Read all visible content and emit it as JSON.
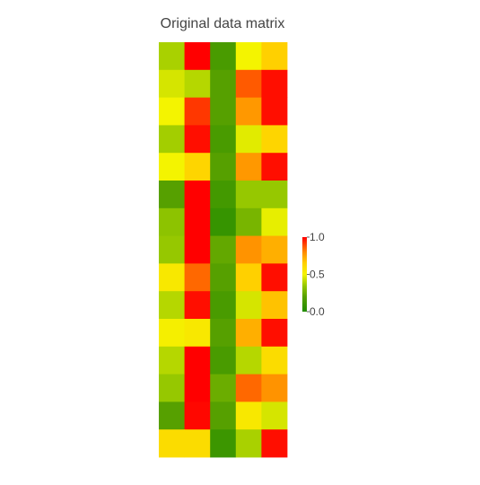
{
  "chart_data": {
    "type": "heatmap",
    "title": "Original data matrix",
    "xlabel": "",
    "ylabel": "",
    "n_rows": 15,
    "n_cols": 5,
    "zlim": [
      0,
      1
    ],
    "colorscale": [
      [
        0.0,
        "#218c00"
      ],
      [
        0.2,
        "#56a000"
      ],
      [
        0.35,
        "#96c800"
      ],
      [
        0.5,
        "#f4f400"
      ],
      [
        0.65,
        "#ffd000"
      ],
      [
        0.8,
        "#ff8a00"
      ],
      [
        1.0,
        "#ff0000"
      ]
    ],
    "colorbar": {
      "ticks": [
        0,
        0.5,
        1
      ],
      "tick_labels": [
        "0.0",
        "0.5",
        "1.0"
      ]
    },
    "values": [
      [
        0.38,
        1.0,
        0.15,
        0.5,
        0.65
      ],
      [
        0.45,
        0.4,
        0.2,
        0.87,
        0.98
      ],
      [
        0.5,
        0.92,
        0.2,
        0.77,
        0.98
      ],
      [
        0.37,
        0.98,
        0.15,
        0.47,
        0.63
      ],
      [
        0.5,
        0.63,
        0.2,
        0.77,
        0.98
      ],
      [
        0.2,
        1.0,
        0.13,
        0.35,
        0.35
      ],
      [
        0.33,
        1.0,
        0.08,
        0.28,
        0.48
      ],
      [
        0.35,
        1.0,
        0.23,
        0.78,
        0.72
      ],
      [
        0.55,
        0.85,
        0.2,
        0.65,
        0.98
      ],
      [
        0.4,
        0.98,
        0.15,
        0.45,
        0.68
      ],
      [
        0.52,
        0.55,
        0.2,
        0.72,
        0.98
      ],
      [
        0.4,
        1.0,
        0.15,
        0.4,
        0.6
      ],
      [
        0.35,
        1.0,
        0.25,
        0.85,
        0.78
      ],
      [
        0.2,
        0.99,
        0.2,
        0.55,
        0.45
      ],
      [
        0.6,
        0.6,
        0.1,
        0.38,
        0.98
      ]
    ]
  }
}
